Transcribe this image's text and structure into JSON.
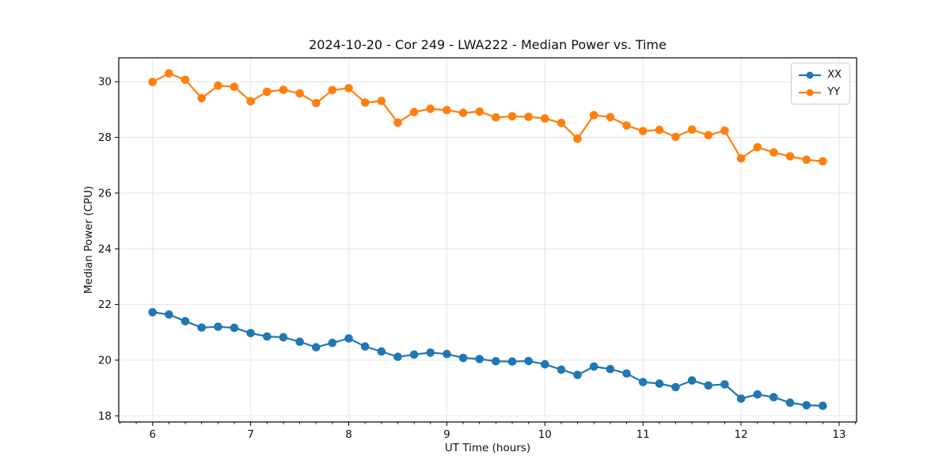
{
  "chart_data": {
    "type": "line",
    "title": "2024-10-20 - Cor 249 - LWA222 - Median Power vs. Time",
    "xlabel": "UT Time (hours)",
    "ylabel": "Median Power (CPU)",
    "xlim": [
      5.655,
      13.178
    ],
    "ylim": [
      17.78,
      30.86
    ],
    "x_ticks": [
      6,
      7,
      8,
      9,
      10,
      11,
      12,
      13
    ],
    "y_ticks": [
      18,
      20,
      22,
      24,
      26,
      28,
      30
    ],
    "x_minor_tick_step": 0.16667,
    "grid": true,
    "legend_position": "upper right",
    "grid_color": "#e5e5e5",
    "axis_color": "#000000",
    "x": [
      6.0,
      6.167,
      6.333,
      6.5,
      6.667,
      6.833,
      7.0,
      7.167,
      7.333,
      7.5,
      7.667,
      7.833,
      8.0,
      8.167,
      8.333,
      8.5,
      8.667,
      8.833,
      9.0,
      9.167,
      9.333,
      9.5,
      9.667,
      9.833,
      10.0,
      10.167,
      10.333,
      10.5,
      10.667,
      10.833,
      11.0,
      11.167,
      11.333,
      11.5,
      11.667,
      11.833,
      12.0,
      12.167,
      12.333,
      12.5,
      12.667,
      12.833
    ],
    "series": [
      {
        "name": "XX",
        "color": "#1f77b4",
        "values": [
          21.72,
          21.64,
          21.4,
          21.17,
          21.2,
          21.16,
          20.97,
          20.85,
          20.82,
          20.66,
          20.46,
          20.62,
          20.78,
          20.49,
          20.31,
          20.12,
          20.2,
          20.27,
          20.22,
          20.08,
          20.04,
          19.96,
          19.95,
          19.97,
          19.85,
          19.66,
          19.47,
          19.77,
          19.68,
          19.52,
          19.21,
          19.16,
          19.03,
          19.27,
          19.09,
          19.13,
          18.62,
          18.77,
          18.67,
          18.47,
          18.38,
          18.36
        ]
      },
      {
        "name": "YY",
        "color": "#ff7f0e",
        "values": [
          29.99,
          30.3,
          30.07,
          29.41,
          29.86,
          29.82,
          29.3,
          29.64,
          29.71,
          29.58,
          29.23,
          29.7,
          29.77,
          29.25,
          29.31,
          28.53,
          28.91,
          29.03,
          28.98,
          28.88,
          28.93,
          28.72,
          28.76,
          28.74,
          28.68,
          28.52,
          27.95,
          28.8,
          28.73,
          28.43,
          28.23,
          28.27,
          28.02,
          28.28,
          28.08,
          28.24,
          27.25,
          27.65,
          27.46,
          27.32,
          27.2,
          27.14
        ]
      }
    ]
  }
}
